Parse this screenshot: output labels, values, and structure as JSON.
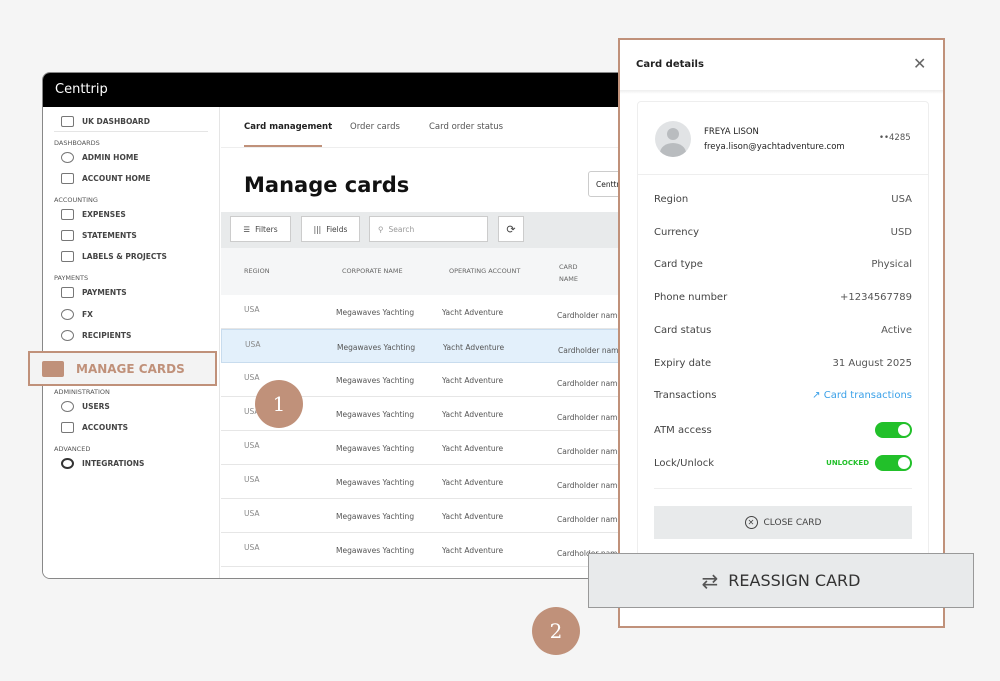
{
  "app": {
    "brand": "Centtrip"
  },
  "sidebar": {
    "top_item": "UK DASHBOARD",
    "sections": [
      {
        "label": "DASHBOARDS",
        "items": [
          "ADMIN HOME",
          "ACCOUNT HOME"
        ]
      },
      {
        "label": "ACCOUNTING",
        "items": [
          "EXPENSES",
          "STATEMENTS",
          "LABELS & PROJECTS"
        ]
      },
      {
        "label": "PAYMENTS",
        "items": [
          "PAYMENTS",
          "FX",
          "RECIPIENTS"
        ]
      },
      {
        "label": "ADMINISTRATION",
        "items": [
          "USERS",
          "ACCOUNTS"
        ]
      },
      {
        "label": "ADVANCED",
        "items": [
          "INTEGRATIONS"
        ]
      }
    ],
    "highlight": "MANAGE CARDS"
  },
  "tabs": [
    "Card management",
    "Order cards",
    "Card order status"
  ],
  "page_title": "Manage cards",
  "entity_select": "Centtr",
  "toolbar": {
    "filters": "Filters",
    "fields": "Fields",
    "search_placeholder": "Search"
  },
  "table": {
    "headers": [
      "REGION",
      "CORPORATE NAME",
      "OPERATING ACCOUNT",
      "CARD NAME"
    ],
    "rows": [
      [
        "USA",
        "Megawaves Yachting",
        "Yacht Adventure",
        "Cardholder name"
      ],
      [
        "USA",
        "Megawaves Yachting",
        "Yacht Adventure",
        "Cardholder name"
      ],
      [
        "USA",
        "Megawaves Yachting",
        "Yacht Adventure",
        "Cardholder name"
      ],
      [
        "USA",
        "Megawaves Yachting",
        "Yacht Adventure",
        "Cardholder name"
      ],
      [
        "USA",
        "Megawaves Yachting",
        "Yacht Adventure",
        "Cardholder name"
      ],
      [
        "USA",
        "Megawaves Yachting",
        "Yacht Adventure",
        "Cardholder name"
      ],
      [
        "USA",
        "Megawaves Yachting",
        "Yacht Adventure",
        "Cardholder name"
      ],
      [
        "USA",
        "Megawaves Yachting",
        "Yacht Adventure",
        "Cardholder name"
      ]
    ],
    "selected_row": 1
  },
  "panel": {
    "title": "Card details",
    "holder": {
      "name": "FREYA LISON",
      "email": "freya.lison@yachtadventure.com",
      "card_last4": "••4285"
    },
    "details": [
      {
        "label": "Region",
        "value": "USA"
      },
      {
        "label": "Currency",
        "value": "USD"
      },
      {
        "label": "Card type",
        "value": "Physical"
      },
      {
        "label": "Phone number",
        "value": "+1234567789"
      },
      {
        "label": "Card status",
        "value": "Active"
      },
      {
        "label": "Expiry date",
        "value": "31 August 2025"
      },
      {
        "label": "Transactions",
        "value": "Card transactions"
      }
    ],
    "atm_label": "ATM access",
    "atm_on": true,
    "lock_label": "Lock/Unlock",
    "lock_status": "UNLOCKED",
    "lock_on": true,
    "close_card": "CLOSE CARD",
    "reassign_card": "REASSIGN CARD"
  },
  "callouts": [
    "1",
    "2"
  ],
  "colors": {
    "accent": "#c0917a",
    "toggle_on": "#22c02a",
    "link": "#3aa0e8",
    "selected_row": "#e3f0fb"
  }
}
